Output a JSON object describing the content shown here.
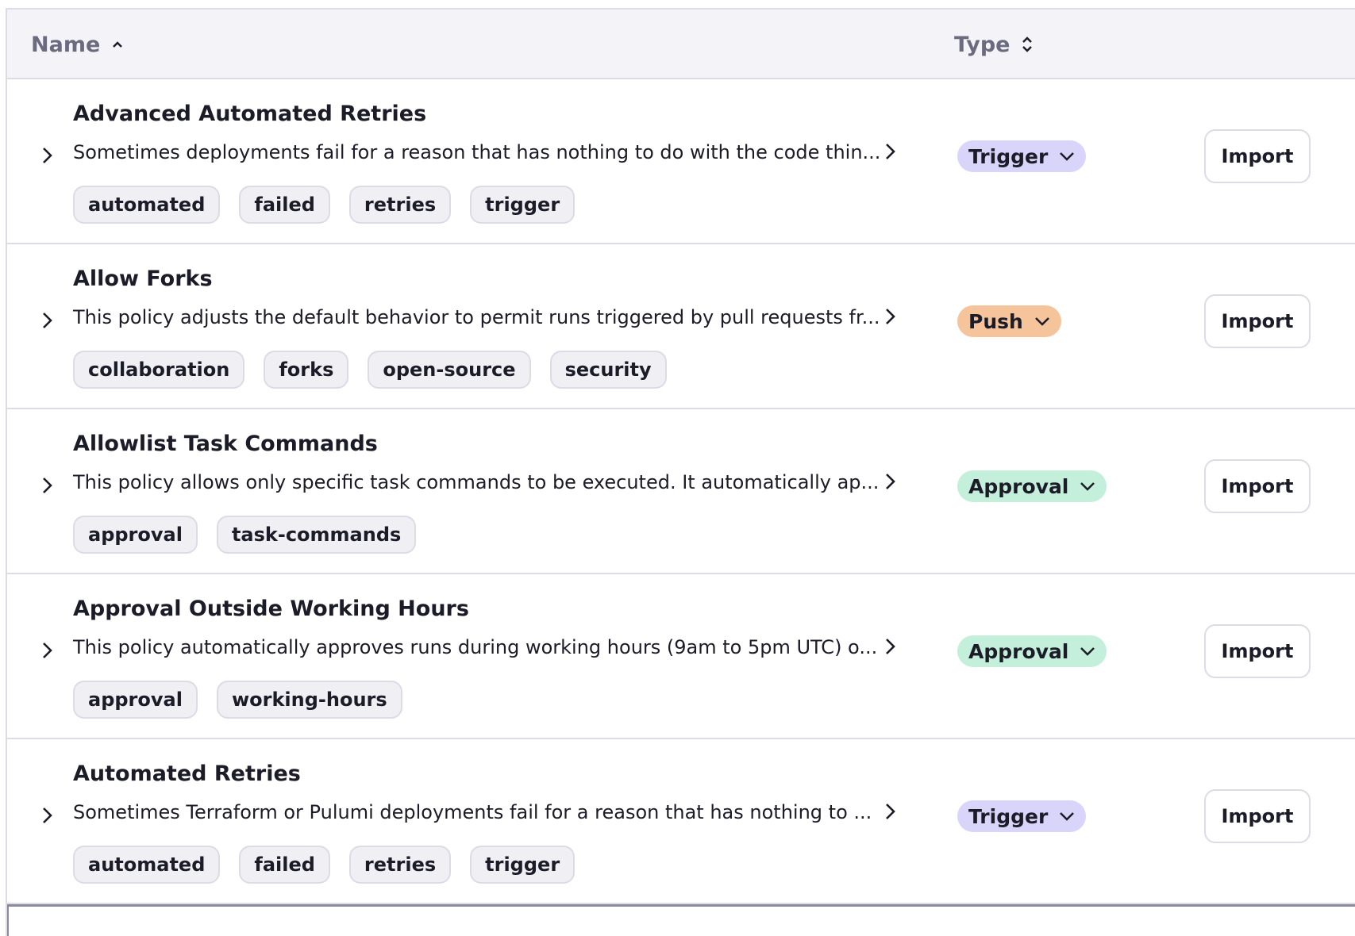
{
  "header": {
    "name_label": "Name",
    "type_label": "Type",
    "name_sort": "ascending",
    "type_sort": "unsorted"
  },
  "type_colors": {
    "Trigger": "#d9d4fa",
    "Push": "#f5c49b",
    "Approval": "#c4efdb"
  },
  "rows": [
    {
      "title": "Advanced Automated Retries",
      "description": "Sometimes deployments fail for a reason that has nothing to do with the code thin...",
      "tags": [
        "automated",
        "failed",
        "retries",
        "trigger"
      ],
      "type": "Trigger",
      "action": "Import"
    },
    {
      "title": "Allow Forks",
      "description": "This policy adjusts the default behavior to permit runs triggered by pull requests fr...",
      "tags": [
        "collaboration",
        "forks",
        "open-source",
        "security"
      ],
      "type": "Push",
      "action": "Import"
    },
    {
      "title": "Allowlist Task Commands",
      "description": "This policy allows only specific task commands to be executed. It automatically ap...",
      "tags": [
        "approval",
        "task-commands"
      ],
      "type": "Approval",
      "action": "Import"
    },
    {
      "title": "Approval Outside Working Hours",
      "description": "This policy automatically approves runs during working hours (9am to 5pm UTC) o...",
      "tags": [
        "approval",
        "working-hours"
      ],
      "type": "Approval",
      "action": "Import"
    },
    {
      "title": "Automated Retries",
      "description": "Sometimes Terraform or Pulumi deployments fail for a reason that has nothing to ...",
      "tags": [
        "automated",
        "failed",
        "retries",
        "trigger"
      ],
      "type": "Trigger",
      "action": "Import"
    }
  ]
}
